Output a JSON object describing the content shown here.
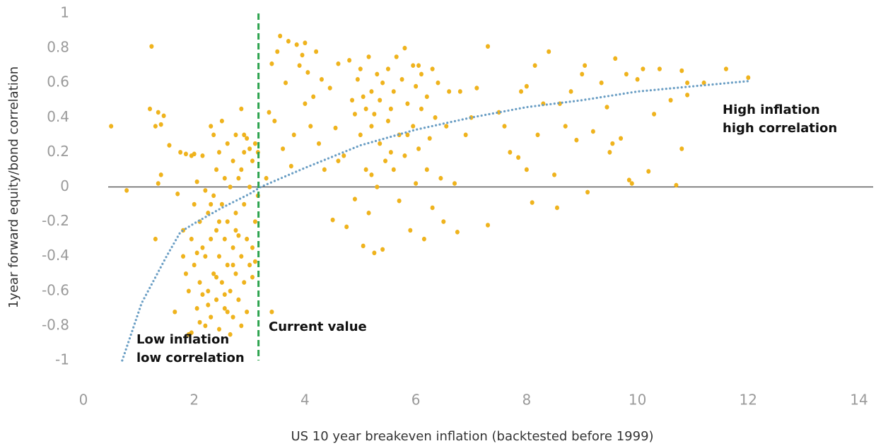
{
  "chart_data": {
    "type": "scatter",
    "xlabel": "US 10 year breakeven inflation (backtested before 1999)",
    "ylabel": "1year forward equity/bond correlation",
    "xlim": [
      0,
      14
    ],
    "xticks": [
      0,
      2,
      4,
      6,
      8,
      10,
      12,
      14
    ],
    "ylim": [
      -1,
      1
    ],
    "yticks": [
      1,
      0.8,
      0.6,
      0.4,
      0.2,
      0,
      -0.2,
      -0.4,
      -0.6,
      -0.8,
      -1
    ],
    "color": "#efb31d",
    "x": [
      0.5,
      0.78,
      1.23,
      1.2,
      1.3,
      1.35,
      1.4,
      1.45,
      1.35,
      1.4,
      1.3,
      1.55,
      1.65,
      1.7,
      1.75,
      1.8,
      1.85,
      1.9,
      1.95,
      2.0,
      1.85,
      1.9,
      1.95,
      2.0,
      2.0,
      2.05,
      2.05,
      2.1,
      2.1,
      2.15,
      2.15,
      2.2,
      2.2,
      2.2,
      2.25,
      2.25,
      2.3,
      2.3,
      2.3,
      2.35,
      2.35,
      2.35,
      2.4,
      2.4,
      2.4,
      2.45,
      2.45,
      2.45,
      2.5,
      2.5,
      2.5,
      2.55,
      2.55,
      2.55,
      2.6,
      2.6,
      2.6,
      2.65,
      2.65,
      2.65,
      2.7,
      2.7,
      2.7,
      2.75,
      2.75,
      2.75,
      2.8,
      2.8,
      2.8,
      2.85,
      2.85,
      2.85,
      2.9,
      2.9,
      2.9,
      2.95,
      2.95,
      2.95,
      3.0,
      3.0,
      3.0,
      3.05,
      3.05,
      3.1,
      3.1,
      3.1,
      3.15,
      3.15,
      1.95,
      2.1,
      2.25,
      2.4,
      2.55,
      2.7,
      2.85,
      2.6,
      2.3,
      2.45,
      2.15,
      2.05,
      1.8,
      2.75,
      2.9,
      3.05,
      3.3,
      3.35,
      3.4,
      3.45,
      3.4,
      3.5,
      3.55,
      3.6,
      3.65,
      3.7,
      3.75,
      3.8,
      3.85,
      3.9,
      3.95,
      4.0,
      4.0,
      4.05,
      4.1,
      4.15,
      4.2,
      4.3,
      4.35,
      4.45,
      4.5,
      4.55,
      4.6,
      4.7,
      4.75,
      4.8,
      4.85,
      4.9,
      4.9,
      4.95,
      5.0,
      5.0,
      5.05,
      5.1,
      5.1,
      5.15,
      5.15,
      5.2,
      5.2,
      5.25,
      5.25,
      5.3,
      5.3,
      5.35,
      5.35,
      5.4,
      5.4,
      5.45,
      5.5,
      5.5,
      5.55,
      5.6,
      5.6,
      5.65,
      5.7,
      5.7,
      5.75,
      5.8,
      5.8,
      5.85,
      5.9,
      5.95,
      5.95,
      6.0,
      6.0,
      6.05,
      6.1,
      6.1,
      6.15,
      6.2,
      6.2,
      6.25,
      6.3,
      6.3,
      6.35,
      6.4,
      6.45,
      6.5,
      6.55,
      6.6,
      6.7,
      6.75,
      6.8,
      6.9,
      5.05,
      5.55,
      6.05,
      4.25,
      4.6,
      5.85,
      5.2,
      7.0,
      7.1,
      7.3,
      7.3,
      7.5,
      7.6,
      7.7,
      7.85,
      7.9,
      8.0,
      8.0,
      8.1,
      8.15,
      8.2,
      8.3,
      8.4,
      8.5,
      8.55,
      8.6,
      8.7,
      8.8,
      8.9,
      9.0,
      9.05,
      9.1,
      9.2,
      9.35,
      9.45,
      9.5,
      9.6,
      9.7,
      9.8,
      9.85,
      9.9,
      10.0,
      10.1,
      10.2,
      10.3,
      10.4,
      10.6,
      10.7,
      10.8,
      10.8,
      10.9,
      11.2,
      11.6,
      12.0,
      10.9,
      9.55
    ],
    "values": [
      0.35,
      -0.02,
      0.81,
      0.45,
      0.35,
      0.43,
      0.36,
      0.41,
      0.02,
      0.07,
      -0.3,
      0.24,
      -0.72,
      -0.04,
      0.2,
      -0.25,
      0.19,
      -0.85,
      0.18,
      0.19,
      -0.5,
      -0.6,
      -0.3,
      -0.1,
      -0.45,
      -0.7,
      0.03,
      -0.2,
      -0.55,
      -0.35,
      0.18,
      -0.8,
      -0.4,
      -0.02,
      -0.6,
      -0.15,
      0.35,
      -0.3,
      -0.75,
      -0.05,
      -0.5,
      0.3,
      -0.65,
      -0.25,
      0.1,
      -0.4,
      -0.82,
      0.2,
      -0.1,
      -0.55,
      0.38,
      -0.3,
      -0.7,
      0.05,
      -0.45,
      -0.2,
      0.25,
      -0.6,
      -0.85,
      0.0,
      -0.35,
      0.15,
      -0.75,
      -0.5,
      -0.15,
      0.3,
      -0.65,
      0.05,
      -0.28,
      0.45,
      -0.4,
      -0.8,
      -0.1,
      0.2,
      -0.55,
      -0.72,
      -0.3,
      0.28,
      0.0,
      -0.45,
      0.22,
      -0.35,
      0.15,
      0.25,
      -0.2,
      -0.43,
      0.2,
      -0.05,
      -0.84,
      -0.78,
      -0.68,
      -0.52,
      -0.62,
      -0.45,
      0.1,
      -0.72,
      -0.1,
      -0.2,
      -0.62,
      -0.38,
      -0.4,
      -0.25,
      0.3,
      -0.52,
      0.05,
      0.43,
      0.71,
      0.38,
      -0.72,
      0.78,
      0.87,
      0.22,
      0.6,
      0.84,
      0.12,
      0.3,
      0.82,
      0.7,
      0.76,
      0.48,
      0.83,
      0.66,
      0.35,
      0.52,
      0.78,
      0.62,
      0.1,
      0.57,
      -0.19,
      0.34,
      0.71,
      0.18,
      -0.23,
      0.73,
      0.5,
      -0.07,
      0.42,
      0.62,
      0.68,
      0.3,
      -0.34,
      0.45,
      0.1,
      0.75,
      -0.15,
      0.55,
      0.07,
      -0.38,
      0.42,
      0.65,
      0.0,
      0.25,
      0.5,
      0.6,
      -0.36,
      0.15,
      0.38,
      0.68,
      0.45,
      0.1,
      0.55,
      0.75,
      -0.08,
      0.3,
      0.62,
      0.18,
      0.8,
      0.48,
      -0.25,
      0.7,
      0.35,
      0.58,
      0.02,
      0.22,
      0.45,
      0.65,
      -0.3,
      0.1,
      0.52,
      0.28,
      0.68,
      -0.12,
      0.4,
      0.6,
      0.05,
      -0.2,
      0.35,
      0.55,
      0.02,
      -0.26,
      0.55,
      0.3,
      0.52,
      0.2,
      0.7,
      0.25,
      0.15,
      0.3,
      0.35,
      0.4,
      0.57,
      0.81,
      -0.22,
      0.43,
      0.35,
      0.2,
      0.17,
      0.55,
      0.1,
      0.58,
      -0.09,
      0.7,
      0.3,
      0.48,
      0.78,
      0.07,
      -0.12,
      0.48,
      0.35,
      0.55,
      0.27,
      0.65,
      0.7,
      -0.03,
      0.32,
      0.6,
      0.46,
      0.2,
      0.74,
      0.28,
      0.65,
      0.04,
      0.02,
      0.62,
      0.68,
      0.09,
      0.42,
      0.68,
      0.5,
      0.01,
      0.22,
      0.67,
      0.6,
      0.6,
      0.68,
      0.63,
      0.53,
      0.25
    ],
    "trend": {
      "color": "#6a9ec4",
      "x": [
        0.7,
        1.05,
        1.5,
        1.75,
        2,
        2.5,
        3,
        3.2,
        4,
        5,
        6,
        7,
        8,
        9,
        10,
        11,
        12
      ],
      "values": [
        -1,
        -0.67,
        -0.4,
        -0.26,
        -0.21,
        -0.12,
        -0.04,
        0,
        0.11,
        0.24,
        0.33,
        0.4,
        0.46,
        0.5,
        0.55,
        0.58,
        0.61
      ]
    },
    "reference_line": {
      "x": 3.16,
      "color": "#2ea44f",
      "label": "Current value"
    },
    "annotations": [
      [
        "Low inflation",
        "low correlation"
      ],
      [
        "High inflation",
        "high correlation"
      ]
    ]
  }
}
